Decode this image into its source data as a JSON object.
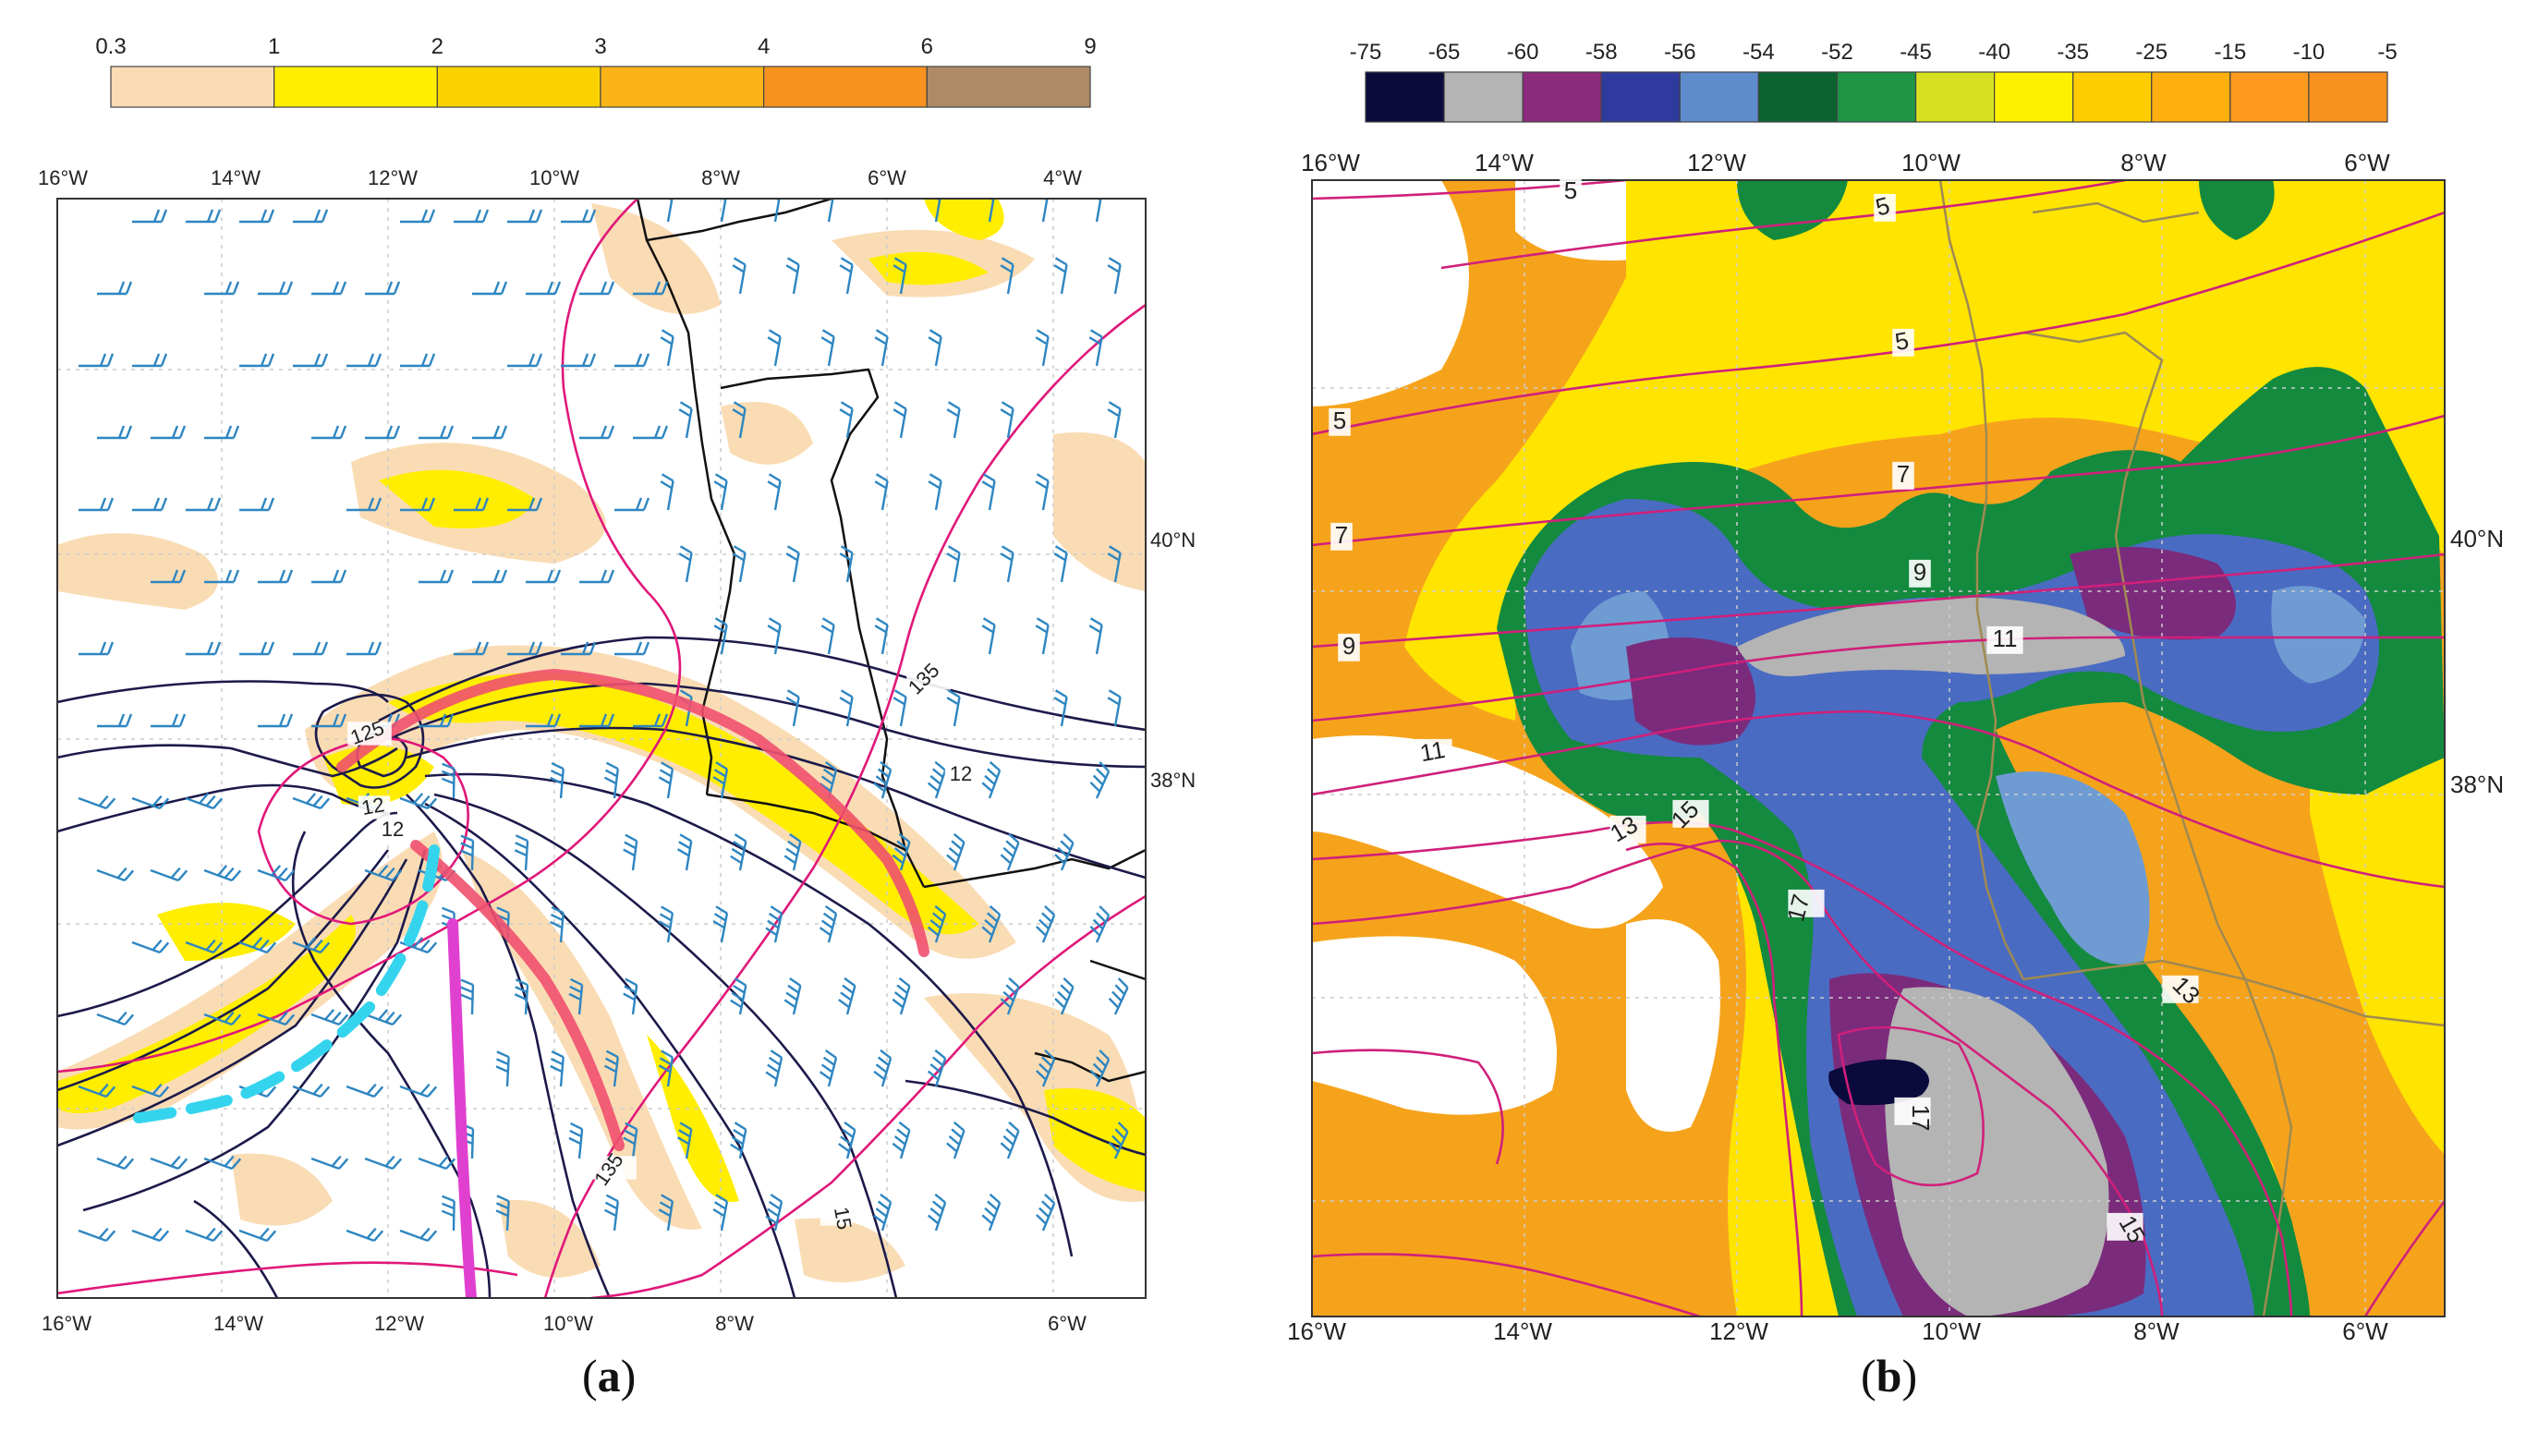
{
  "panel_a": {
    "caption_open": "(",
    "caption_letter": "a",
    "caption_close": ")",
    "colorbar": {
      "ticks": [
        "0.3",
        "1",
        "2",
        "3",
        "4",
        "6",
        "9"
      ],
      "colors": [
        "#fadcb4",
        "#ffee00",
        "#fad200",
        "#fbb418",
        "#f7921e",
        "#ad8b66"
      ]
    },
    "top_lon_labels": [
      "16°W",
      "14°W",
      "12°W",
      "10°W",
      "8°W",
      "6°W",
      "4°W"
    ],
    "bottom_lon_labels": [
      "16°W",
      "14°W",
      "12°W",
      "10°W",
      "8°W",
      "6°W"
    ],
    "lat_labels": [
      "40°N",
      "38°N"
    ],
    "contour_labels": [
      "125",
      "12",
      "12",
      "12",
      "135",
      "135",
      "15"
    ],
    "colors": {
      "isobar": "#1c1a4a",
      "magenta_contour": "#e0187a",
      "wind_barb": "#2e86c1",
      "cold_front": "#34d4ee",
      "warm_front": "#f0506e",
      "trough_line": "#e040d0",
      "coast": "#111111"
    }
  },
  "panel_b": {
    "caption_open": "(",
    "caption_letter": "b",
    "caption_close": ")",
    "colorbar": {
      "ticks": [
        "-75",
        "-65",
        "-60",
        "-58",
        "-56",
        "-54",
        "-52",
        "-45",
        "-40",
        "-35",
        "-25",
        "-15",
        "-10",
        "-5"
      ],
      "colors": [
        "#0a0a3c",
        "#b4b4b4",
        "#8c2a7e",
        "#2e3a9e",
        "#5e8ccc",
        "#0b6430",
        "#1e9646",
        "#d6e021",
        "#fff000",
        "#ffcd00",
        "#ffb010",
        "#ff9a1e",
        "#f7921e"
      ]
    },
    "top_lon_labels": [
      "16°W",
      "14°W",
      "12°W",
      "10°W",
      "8°W",
      "6°W"
    ],
    "bottom_lon_labels": [
      "16°W",
      "14°W",
      "12°W",
      "10°W",
      "8°W",
      "6°W"
    ],
    "lat_labels": [
      "40°N",
      "38°N"
    ],
    "contour_labels": [
      "5",
      "5",
      "5",
      "5",
      "7",
      "7",
      "9",
      "9",
      "11",
      "11",
      "13",
      "15",
      "17",
      "13",
      "15",
      "17"
    ],
    "colors": {
      "contour": "#d0207a",
      "border": "#a08a50",
      "orange": "#f6a31c",
      "yellow": "#ffe400",
      "green": "#138a3e",
      "darkgreen": "#0b6a30",
      "blue": "#4a6bc2",
      "lightblue": "#6f9bd3",
      "purple": "#7b2b7c",
      "gray": "#b4b4b4",
      "navy": "#0a0a3c"
    }
  }
}
